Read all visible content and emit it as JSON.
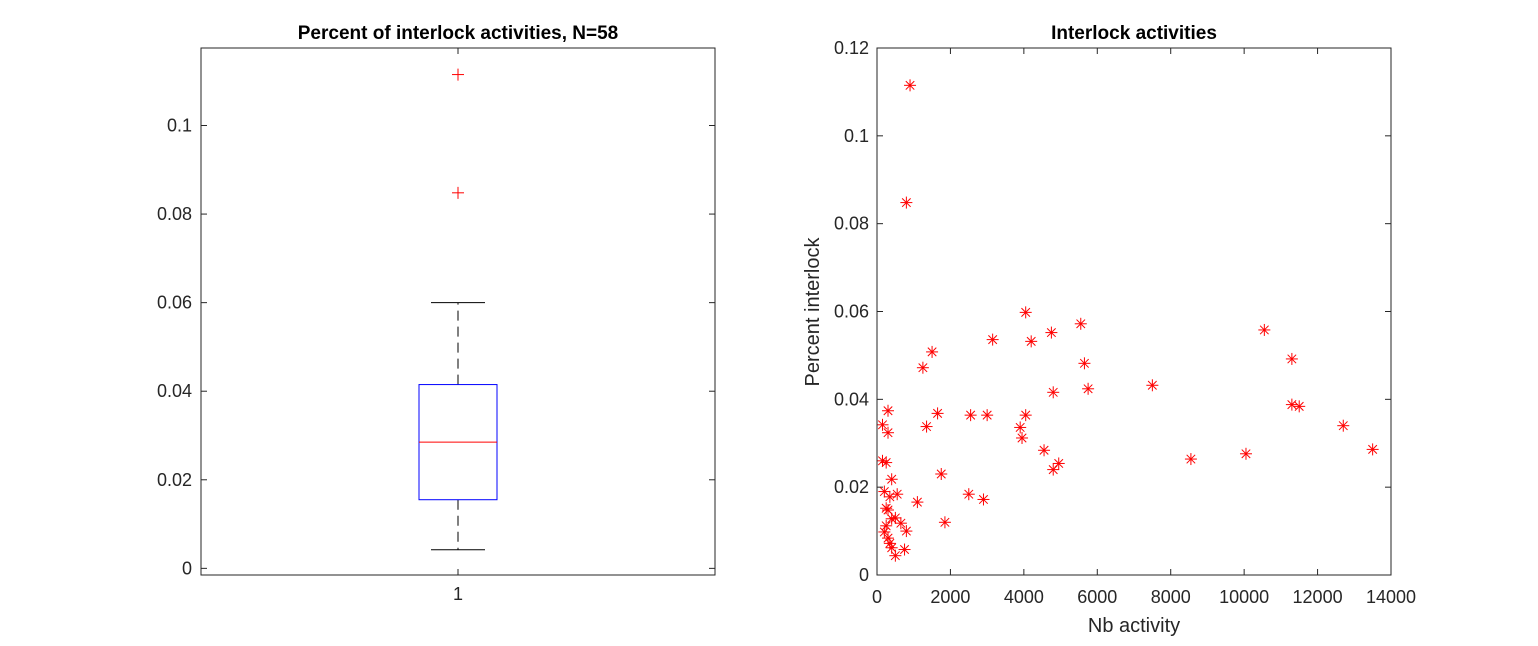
{
  "figure": {
    "background": "#ffffff"
  },
  "chart_data": [
    {
      "type": "box",
      "title": "Percent of interlock activities, N=58",
      "xlabel": "",
      "ylabel": "",
      "categories": [
        "1"
      ],
      "ylim": [
        -0.0015,
        0.1175
      ],
      "yticks": [
        0,
        0.02,
        0.04,
        0.06,
        0.08,
        0.1
      ],
      "ytick_labels": [
        "0",
        "0.02",
        "0.04",
        "0.06",
        "0.08",
        "0.1"
      ],
      "box": {
        "lower_whisker": 0.0042,
        "q1": 0.0155,
        "median": 0.0285,
        "q3": 0.0415,
        "upper_whisker": 0.06
      },
      "outliers": [
        0.0848,
        0.1115
      ],
      "colors": {
        "box": "#0000ff",
        "median": "#ff0000",
        "whisker": "#000000",
        "outlier": "#ff0000"
      },
      "grid": false
    },
    {
      "type": "scatter",
      "title": "Interlock activities",
      "xlabel": "Nb activity",
      "ylabel": "Percent interlock",
      "xlim": [
        0,
        14000
      ],
      "ylim": [
        0,
        0.12
      ],
      "xticks": [
        0,
        2000,
        4000,
        6000,
        8000,
        10000,
        12000,
        14000
      ],
      "xtick_labels": [
        "0",
        "2000",
        "4000",
        "6000",
        "8000",
        "10000",
        "12000",
        "14000"
      ],
      "yticks": [
        0,
        0.02,
        0.04,
        0.06,
        0.08,
        0.1,
        0.12
      ],
      "ytick_labels": [
        "0",
        "0.02",
        "0.04",
        "0.06",
        "0.08",
        "0.1",
        "0.12"
      ],
      "marker": "asterisk",
      "color": "#ff0000",
      "grid": false,
      "points": [
        [
          900,
          0.1115
        ],
        [
          800,
          0.0848
        ],
        [
          4050,
          0.0598
        ],
        [
          5550,
          0.0572
        ],
        [
          10550,
          0.0558
        ],
        [
          4750,
          0.0552
        ],
        [
          3150,
          0.0536
        ],
        [
          4200,
          0.0532
        ],
        [
          1500,
          0.0508
        ],
        [
          11300,
          0.0492
        ],
        [
          5650,
          0.0482
        ],
        [
          1250,
          0.0472
        ],
        [
          7500,
          0.0432
        ],
        [
          5750,
          0.0424
        ],
        [
          4800,
          0.0416
        ],
        [
          11300,
          0.0388
        ],
        [
          11500,
          0.0384
        ],
        [
          300,
          0.0374
        ],
        [
          1650,
          0.0368
        ],
        [
          2550,
          0.0364
        ],
        [
          3000,
          0.0364
        ],
        [
          4050,
          0.0364
        ],
        [
          150,
          0.0342
        ],
        [
          1350,
          0.0338
        ],
        [
          12700,
          0.034
        ],
        [
          3900,
          0.0336
        ],
        [
          300,
          0.0324
        ],
        [
          3950,
          0.0312
        ],
        [
          13500,
          0.0286
        ],
        [
          4550,
          0.0284
        ],
        [
          10050,
          0.0276
        ],
        [
          8550,
          0.0264
        ],
        [
          150,
          0.026
        ],
        [
          250,
          0.0256
        ],
        [
          4950,
          0.0254
        ],
        [
          4800,
          0.024
        ],
        [
          1750,
          0.023
        ],
        [
          400,
          0.0218
        ],
        [
          200,
          0.019
        ],
        [
          550,
          0.0184
        ],
        [
          2500,
          0.0184
        ],
        [
          350,
          0.0178
        ],
        [
          2900,
          0.0172
        ],
        [
          1100,
          0.0166
        ],
        [
          250,
          0.0152
        ],
        [
          300,
          0.0148
        ],
        [
          400,
          0.0128
        ],
        [
          500,
          0.013
        ],
        [
          650,
          0.0118
        ],
        [
          1850,
          0.012
        ],
        [
          200,
          0.0098
        ],
        [
          800,
          0.01
        ],
        [
          300,
          0.0084
        ],
        [
          350,
          0.0072
        ],
        [
          400,
          0.0062
        ],
        [
          750,
          0.0058
        ],
        [
          500,
          0.0044
        ],
        [
          250,
          0.0112
        ]
      ]
    }
  ]
}
